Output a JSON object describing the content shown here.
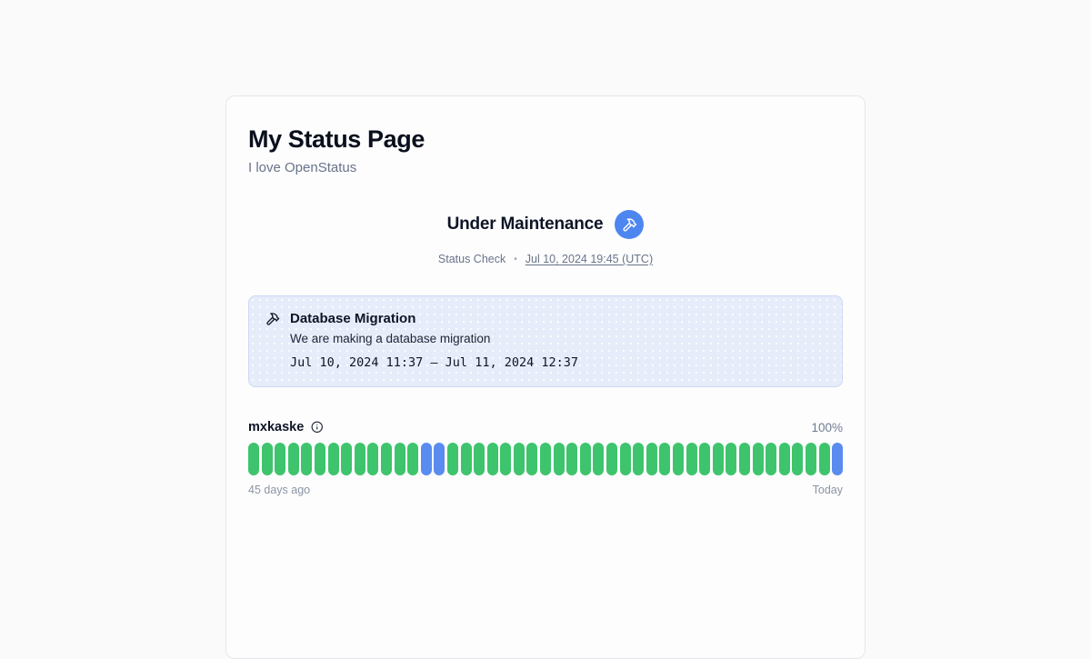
{
  "header": {
    "title": "My Status Page",
    "description": "I love OpenStatus"
  },
  "status": {
    "label": "Under Maintenance",
    "icon": "hammer-icon",
    "check_label": "Status Check",
    "separator": "•",
    "timestamp": "Jul 10, 2024 19:45 (UTC)"
  },
  "maintenance_banner": {
    "icon": "hammer-icon",
    "title": "Database Migration",
    "message": "We are making a database migration",
    "period": "Jul 10, 2024 11:37 – Jul 11, 2024 12:37"
  },
  "monitor": {
    "name": "mxkaske",
    "uptime": "100%",
    "range_start": "45 days ago",
    "range_end": "Today",
    "bars": [
      "operational",
      "operational",
      "operational",
      "operational",
      "operational",
      "operational",
      "operational",
      "operational",
      "operational",
      "operational",
      "operational",
      "operational",
      "operational",
      "maintenance",
      "maintenance",
      "operational",
      "operational",
      "operational",
      "operational",
      "operational",
      "operational",
      "operational",
      "operational",
      "operational",
      "operational",
      "operational",
      "operational",
      "operational",
      "operational",
      "operational",
      "operational",
      "operational",
      "operational",
      "operational",
      "operational",
      "operational",
      "operational",
      "operational",
      "operational",
      "operational",
      "operational",
      "operational",
      "operational",
      "operational",
      "maintenance"
    ]
  },
  "colors": {
    "operational": "#3ec46d",
    "maintenance": "#5a8cf0",
    "maintenance_badge": "#4e86f0"
  }
}
